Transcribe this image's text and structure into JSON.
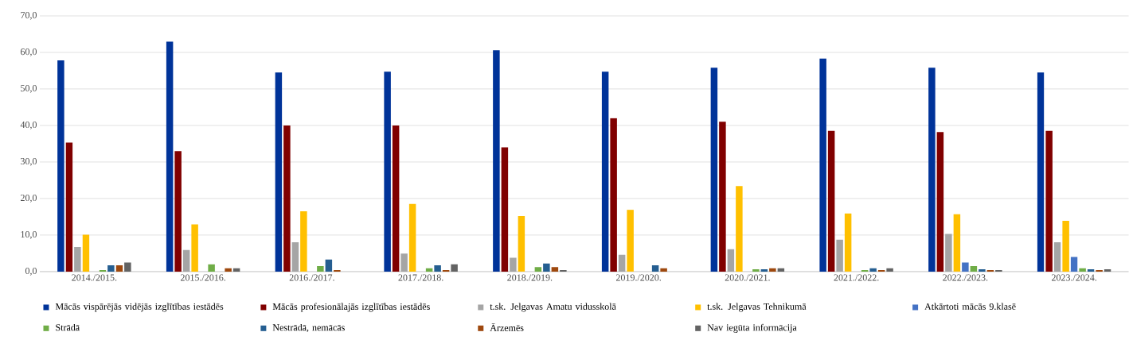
{
  "chart_data": {
    "type": "bar",
    "categories": [
      "2014./2015.",
      "2015./2016.",
      "2016./2017.",
      "2017./2018.",
      "2018./2019.",
      "2019./2020.",
      "2020./2021.",
      "2021./2022.",
      "2022./2023.",
      "2023./2024."
    ],
    "series": [
      {
        "name": "Mācās vispārējās vidējās izglītības iestādēs",
        "color": "#003399",
        "values": [
          57.8,
          63.0,
          54.5,
          54.7,
          60.6,
          54.7,
          55.8,
          58.3,
          55.8,
          54.5
        ]
      },
      {
        "name": "Mācās profesionālajās izglītības iestādēs",
        "color": "#800000",
        "values": [
          35.3,
          33.0,
          40.0,
          40.0,
          34.0,
          42.0,
          41.0,
          38.5,
          38.2,
          38.5
        ]
      },
      {
        "name": "t.sk. Jelgavas Amatu vidusskolā",
        "color": "#a5a5a5",
        "values": [
          6.7,
          5.9,
          8.0,
          4.9,
          3.8,
          4.6,
          6.1,
          8.7,
          10.3,
          8.0
        ]
      },
      {
        "name": "t.sk. Jelgavas Tehnikumā",
        "color": "#ffc000",
        "values": [
          10.1,
          12.9,
          16.5,
          18.5,
          15.2,
          16.9,
          23.4,
          15.9,
          15.7,
          13.9
        ]
      },
      {
        "name": "Atkārtoti mācās 9.klasē",
        "color": "#4472c4",
        "values": [
          0,
          0,
          0,
          0,
          0,
          0,
          0,
          0,
          2.5,
          4.0
        ]
      },
      {
        "name": "Strādā",
        "color": "#70ad47",
        "values": [
          0.4,
          2.0,
          1.5,
          0.9,
          1.2,
          0,
          0.6,
          0.4,
          1.5,
          0.9
        ]
      },
      {
        "name": "Nestrādā, nemācās",
        "color": "#255e91",
        "values": [
          1.7,
          0,
          3.3,
          1.7,
          2.2,
          1.7,
          0.6,
          0.9,
          0.6,
          0.6
        ]
      },
      {
        "name": "Ārzemēs",
        "color": "#9e480e",
        "values": [
          1.7,
          0.9,
          0.4,
          0.4,
          1.2,
          0.9,
          0.9,
          0.4,
          0.4,
          0.4
        ]
      },
      {
        "name": "Nav iegūta informācija",
        "color": "#636363",
        "values": [
          2.5,
          0.9,
          0,
          2.0,
          0.4,
          0,
          0.9,
          0.9,
          0.4,
          0.6
        ]
      }
    ],
    "ylim": [
      0,
      70
    ],
    "yticks": [
      {
        "value": 0,
        "label": "0,0"
      },
      {
        "value": 10,
        "label": "10,0"
      },
      {
        "value": 20,
        "label": "20,0"
      },
      {
        "value": 30,
        "label": "30,0"
      },
      {
        "value": 40,
        "label": "40,0"
      },
      {
        "value": 50,
        "label": "50,0"
      },
      {
        "value": 60,
        "label": "60,0"
      },
      {
        "value": 70,
        "label": "70,0"
      }
    ],
    "grid": "y",
    "legend": "bottom"
  }
}
